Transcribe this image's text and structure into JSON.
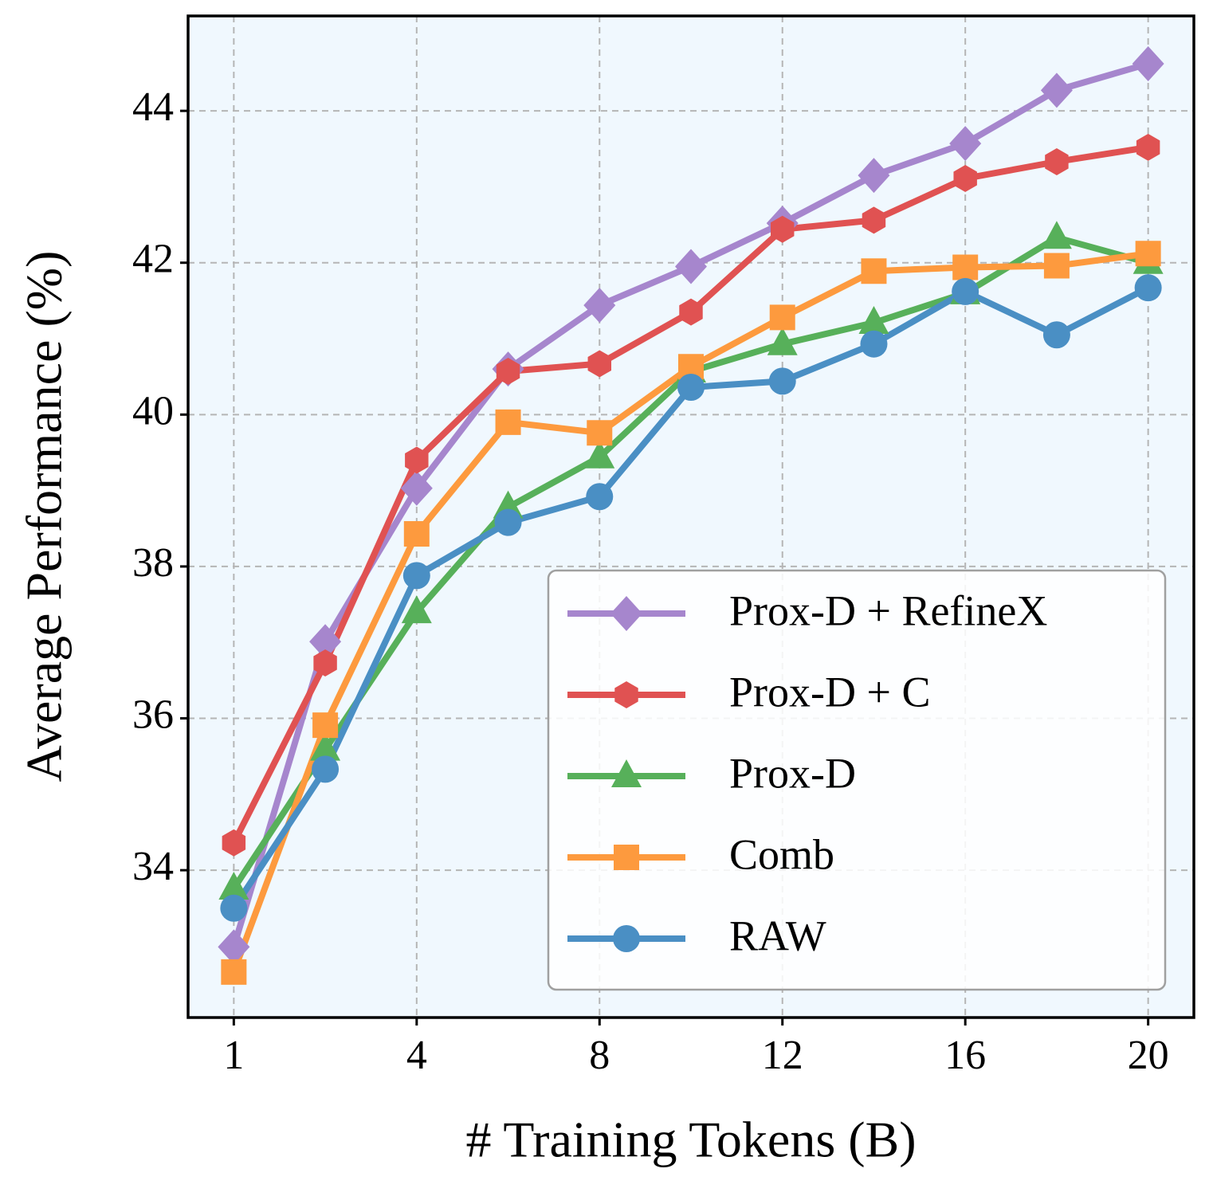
{
  "chart_data": {
    "type": "line",
    "xlabel": "# Training Tokens (B)",
    "ylabel": "Average Performance (%)",
    "categories": [
      "1",
      null,
      "4",
      null,
      "8",
      null,
      "12",
      null,
      "16",
      null,
      "20"
    ],
    "ylim": [
      32.06,
      45.25
    ],
    "yticks": [
      34,
      36,
      38,
      40,
      42,
      44
    ],
    "grid": true,
    "legend": "lower right",
    "series": [
      {
        "name": "Prox-D + RefineX",
        "color": "#a686cd",
        "marker": "diamond",
        "values": [
          32.99,
          37.01,
          39.03,
          40.6,
          41.44,
          41.95,
          42.52,
          43.15,
          43.57,
          44.27,
          44.62
        ]
      },
      {
        "name": "Prox-D + C",
        "color": "#e05252",
        "marker": "hexagon",
        "values": [
          34.36,
          36.73,
          39.4,
          40.57,
          40.67,
          41.35,
          42.44,
          42.56,
          43.11,
          43.33,
          43.52
        ]
      },
      {
        "name": "Prox-D",
        "color": "#57b05a",
        "marker": "triangle",
        "values": [
          33.76,
          35.59,
          37.4,
          38.78,
          39.44,
          40.57,
          40.93,
          41.21,
          41.6,
          42.33,
          42.0
        ]
      },
      {
        "name": "Comb",
        "color": "#fd9a3e",
        "marker": "square",
        "values": [
          32.66,
          35.91,
          38.43,
          39.9,
          39.76,
          40.63,
          41.28,
          41.89,
          41.94,
          41.96,
          42.12
        ]
      },
      {
        "name": "RAW",
        "color": "#4a8fc4",
        "marker": "circle",
        "values": [
          33.5,
          35.33,
          37.88,
          38.58,
          38.92,
          40.36,
          40.44,
          40.93,
          41.62,
          41.05,
          41.67
        ]
      }
    ]
  }
}
